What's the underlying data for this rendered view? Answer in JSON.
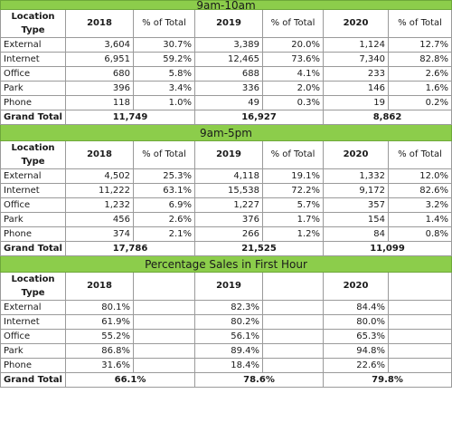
{
  "sections": [
    {
      "title": "9am-10am",
      "headers": {
        "location_line1": "Location",
        "location_line2": "Type",
        "y2018": "2018",
        "pct1": "% of Total",
        "y2019": "2019",
        "pct2": "% of Total",
        "y2020": "2020",
        "pct3": "% of Total"
      },
      "rows": [
        [
          "External",
          "3,604",
          "30.7%",
          "3,389",
          "20.0%",
          "1,124",
          "12.7%"
        ],
        [
          "Internet",
          "6,951",
          "59.2%",
          "12,465",
          "73.6%",
          "7,340",
          "82.8%"
        ],
        [
          "Office",
          "680",
          "5.8%",
          "688",
          "4.1%",
          "233",
          "2.6%"
        ],
        [
          "Park",
          "396",
          "3.4%",
          "336",
          "2.0%",
          "146",
          "1.6%"
        ],
        [
          "Phone",
          "118",
          "1.0%",
          "49",
          "0.3%",
          "19",
          "0.2%"
        ]
      ],
      "total": {
        "label": "Grand Total",
        "v2018": "11,749",
        "v2019": "16,927",
        "v2020": "8,862"
      }
    },
    {
      "title": "9am-5pm",
      "headers": {
        "location_line1": "Location",
        "location_line2": "Type",
        "y2018": "2018",
        "pct1": "% of Total",
        "y2019": "2019",
        "pct2": "% of Total",
        "y2020": "2020",
        "pct3": "% of Total"
      },
      "rows": [
        [
          "External",
          "4,502",
          "25.3%",
          "4,118",
          "19.1%",
          "1,332",
          "12.0%"
        ],
        [
          "Internet",
          "11,222",
          "63.1%",
          "15,538",
          "72.2%",
          "9,172",
          "82.6%"
        ],
        [
          "Office",
          "1,232",
          "6.9%",
          "1,227",
          "5.7%",
          "357",
          "3.2%"
        ],
        [
          "Park",
          "456",
          "2.6%",
          "376",
          "1.7%",
          "154",
          "1.4%"
        ],
        [
          "Phone",
          "374",
          "2.1%",
          "266",
          "1.2%",
          "84",
          "0.8%"
        ]
      ],
      "total": {
        "label": "Grand Total",
        "v2018": "17,786",
        "v2019": "21,525",
        "v2020": "11,099"
      }
    },
    {
      "title": "Percentage Sales in First Hour",
      "headers": {
        "location_line1": "Location",
        "location_line2": "Type",
        "y2018": "2018",
        "y2019": "2019",
        "y2020": "2020"
      },
      "rows": [
        [
          "External",
          "80.1%",
          "82.3%",
          "84.4%"
        ],
        [
          "Internet",
          "61.9%",
          "80.2%",
          "80.0%"
        ],
        [
          "Office",
          "55.2%",
          "56.1%",
          "65.3%"
        ],
        [
          "Park",
          "86.8%",
          "89.4%",
          "94.8%"
        ],
        [
          "Phone",
          "31.6%",
          "18.4%",
          "22.6%"
        ]
      ],
      "total": {
        "label": "Grand Total",
        "v2018": "66.1%",
        "v2019": "78.6%",
        "v2020": "79.8%"
      }
    }
  ],
  "colors": {
    "band": "#8ccd4b",
    "grid": "#9a9a9a"
  }
}
